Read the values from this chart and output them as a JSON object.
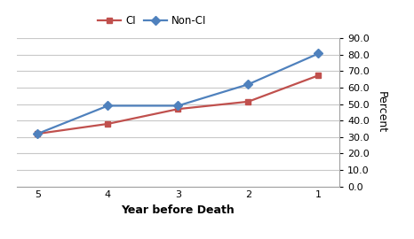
{
  "x": [
    5,
    4,
    3,
    2,
    1
  ],
  "ci_values": [
    32.0,
    38.0,
    47.0,
    51.5,
    67.4
  ],
  "non_ci_values": [
    32.0,
    49.0,
    49.0,
    62.0,
    80.7
  ],
  "ci_color": "#C0504D",
  "non_ci_color": "#4F81BD",
  "ci_label": "CI",
  "non_ci_label": "Non-CI",
  "xlabel": "Year before Death",
  "ylabel": "Percent",
  "ylim": [
    0.0,
    90.0
  ],
  "yticks": [
    0.0,
    10.0,
    20.0,
    30.0,
    40.0,
    50.0,
    60.0,
    70.0,
    80.0,
    90.0
  ],
  "xticks": [
    5,
    4,
    3,
    2,
    1
  ],
  "grid_color": "#c8c8c8",
  "background_color": "#ffffff",
  "marker_ci": "s",
  "marker_non_ci": "D",
  "linewidth": 1.6,
  "markersize": 5
}
